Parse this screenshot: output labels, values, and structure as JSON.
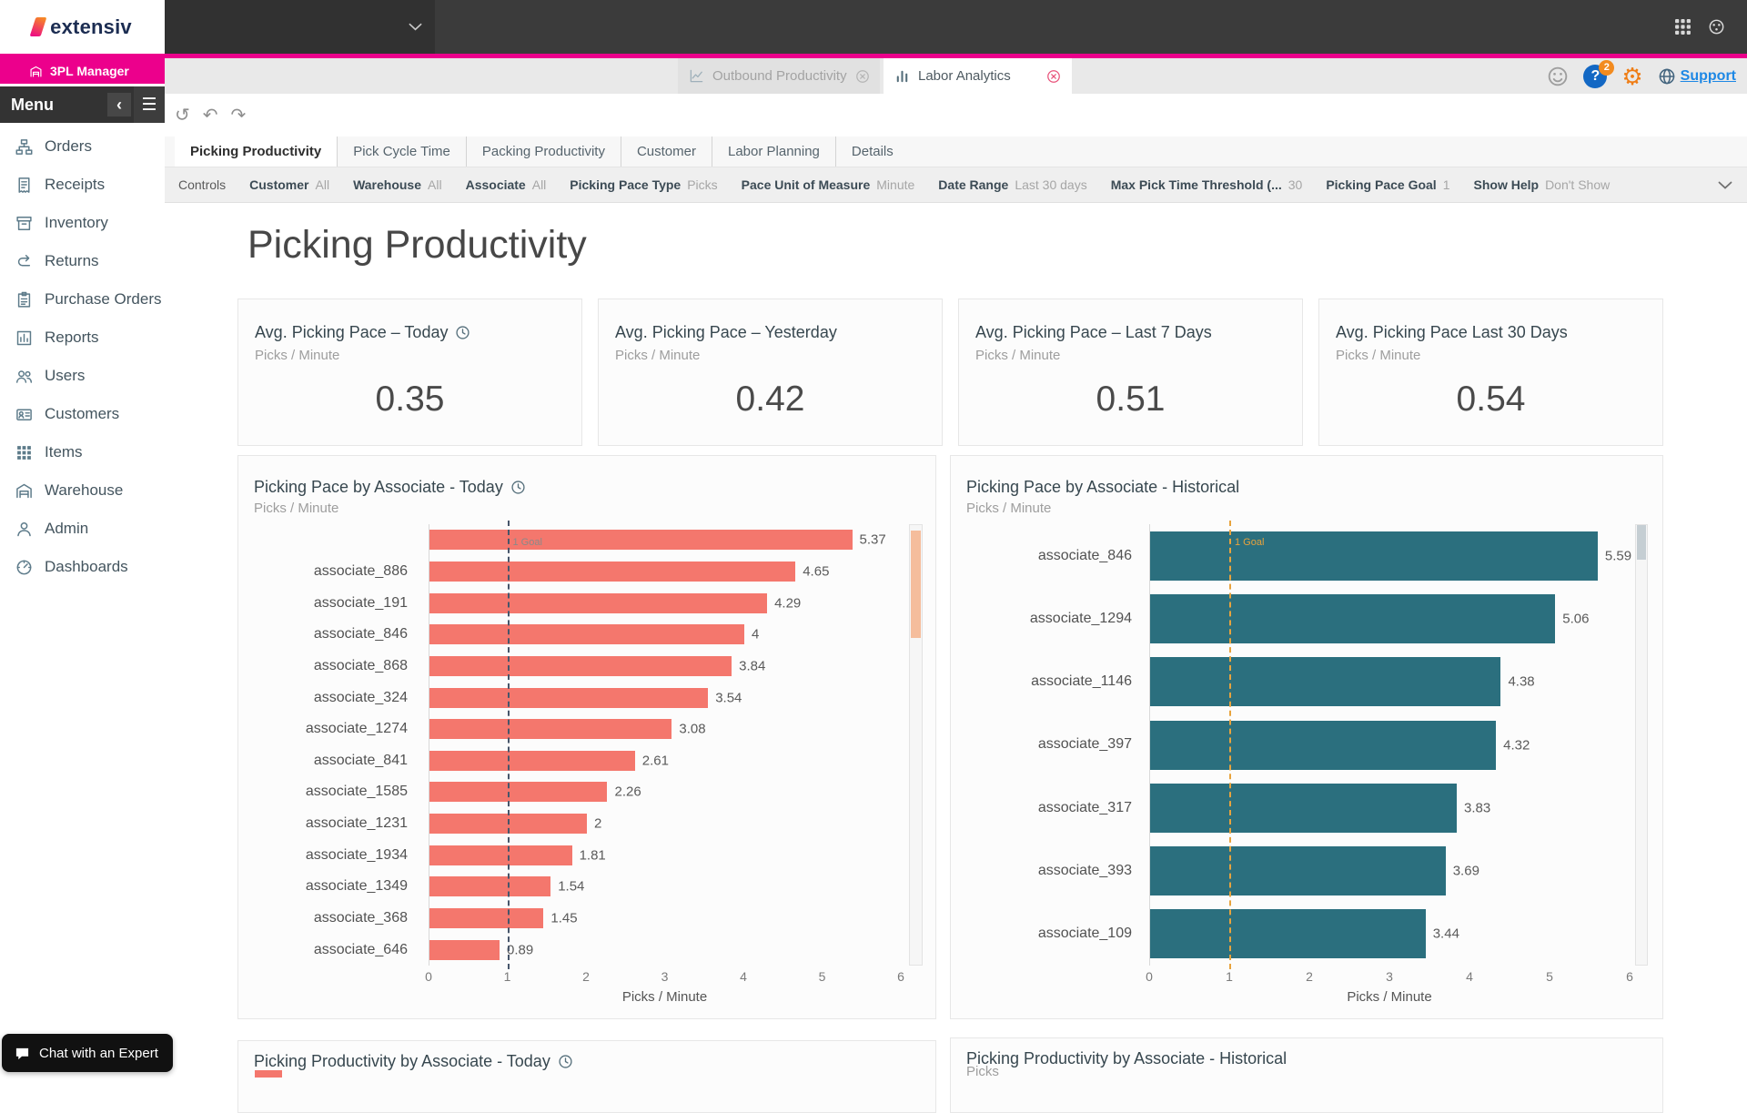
{
  "brand": {
    "logo_text": "extensiv",
    "badge": "3PL Manager"
  },
  "colors": {
    "accent_pink": "#ec008c",
    "salmon_bar": "#f4776d",
    "teal_bar": "#2b6f7e",
    "goal_orange": "#e8a33d",
    "goal_navy": "#47566b",
    "link_blue": "#1e88e5",
    "gear_orange": "#ef7d15"
  },
  "icons": {
    "reset": "↺",
    "undo": "↶",
    "redo": "↷",
    "gear": "⚙",
    "hamburger": "☰",
    "collapse": "‹",
    "help": "?"
  },
  "window_tabs": [
    {
      "label": "Outbound Productivity",
      "active": false,
      "icon": "chart-line"
    },
    {
      "label": "Labor Analytics",
      "active": true,
      "icon": "chart-bars"
    }
  ],
  "topbar_right": {
    "support_label": "Support",
    "help_badge": "2"
  },
  "menu": {
    "title": "Menu",
    "items": [
      {
        "label": "Orders",
        "icon": "orders"
      },
      {
        "label": "Receipts",
        "icon": "receipts"
      },
      {
        "label": "Inventory",
        "icon": "inventory"
      },
      {
        "label": "Returns",
        "icon": "returns"
      },
      {
        "label": "Purchase Orders",
        "icon": "purchase-orders"
      },
      {
        "label": "Reports",
        "icon": "reports"
      },
      {
        "label": "Users",
        "icon": "users"
      },
      {
        "label": "Customers",
        "icon": "customers"
      },
      {
        "label": "Items",
        "icon": "items"
      },
      {
        "label": "Warehouse",
        "icon": "warehouse"
      },
      {
        "label": "Admin",
        "icon": "admin"
      },
      {
        "label": "Dashboards",
        "icon": "dashboards"
      }
    ]
  },
  "chat_button": {
    "label": "Chat with an Expert"
  },
  "report_tabs": [
    {
      "label": "Picking Productivity",
      "active": true
    },
    {
      "label": "Pick Cycle Time",
      "active": false
    },
    {
      "label": "Packing Productivity",
      "active": false
    },
    {
      "label": "Customer",
      "active": false
    },
    {
      "label": "Labor Planning",
      "active": false
    },
    {
      "label": "Details",
      "active": false
    }
  ],
  "controls": {
    "row_label": "Controls",
    "items": [
      {
        "label": "Customer",
        "value": "All"
      },
      {
        "label": "Warehouse",
        "value": "All"
      },
      {
        "label": "Associate",
        "value": "All"
      },
      {
        "label": "Picking Pace Type",
        "value": "Picks"
      },
      {
        "label": "Pace Unit of Measure",
        "value": "Minute"
      },
      {
        "label": "Date Range",
        "value": "Last 30 days"
      },
      {
        "label": "Max Pick Time Threshold (...",
        "value": "30"
      },
      {
        "label": "Picking Pace Goal",
        "value": "1"
      },
      {
        "label": "Show Help",
        "value": "Don't Show"
      }
    ]
  },
  "page_title": "Picking Productivity",
  "kpis": [
    {
      "title": "Avg. Picking Pace – Today",
      "subtitle": "Picks / Minute",
      "value": "0.35",
      "clock": true
    },
    {
      "title": "Avg. Picking Pace – Yesterday",
      "subtitle": "Picks / Minute",
      "value": "0.42",
      "clock": false
    },
    {
      "title": "Avg. Picking Pace – Last 7 Days",
      "subtitle": "Picks / Minute",
      "value": "0.51",
      "clock": false
    },
    {
      "title": "Avg. Picking Pace Last 30 Days",
      "subtitle": "Picks / Minute",
      "value": "0.54",
      "clock": false
    }
  ],
  "chart_data": [
    {
      "type": "bar",
      "orientation": "horizontal",
      "title": "Picking Pace by Associate - Today",
      "subtitle": "Picks / Minute",
      "xlabel": "Picks / Minute",
      "xlim": [
        0,
        6
      ],
      "xticks": [
        0,
        1,
        2,
        3,
        4,
        5,
        6
      ],
      "goal": {
        "value": 1,
        "label": "1 Goal"
      },
      "bar_color": "#f4776d",
      "clock": true,
      "scrollable": true,
      "categories": [
        "",
        "associate_886",
        "associate_191",
        "associate_846",
        "associate_868",
        "associate_324",
        "associate_1274",
        "associate_841",
        "associate_1585",
        "associate_1231",
        "associate_1934",
        "associate_1349",
        "associate_368",
        "associate_646"
      ],
      "values": [
        5.37,
        4.65,
        4.29,
        4,
        3.84,
        3.54,
        3.08,
        2.61,
        2.26,
        2,
        1.81,
        1.54,
        1.45,
        0.89
      ],
      "value_labels": [
        "5.37",
        "4.65",
        "4.29",
        "4",
        "3.84",
        "3.54",
        "3.08",
        "2.61",
        "2.26",
        "2",
        "1.81",
        "1.54",
        "1.45",
        "0.89"
      ]
    },
    {
      "type": "bar",
      "orientation": "horizontal",
      "title": "Picking Pace by Associate - Historical",
      "subtitle": "Picks / Minute",
      "xlabel": "Picks / Minute",
      "xlim": [
        0,
        6
      ],
      "xticks": [
        0,
        1,
        2,
        3,
        4,
        5,
        6
      ],
      "goal": {
        "value": 1,
        "label": "1 Goal"
      },
      "bar_color": "#2b6f7e",
      "clock": false,
      "scrollable": true,
      "categories": [
        "associate_846",
        "associate_1294",
        "associate_1146",
        "associate_397",
        "associate_317",
        "associate_393",
        "associate_109"
      ],
      "values": [
        5.59,
        5.06,
        4.38,
        4.32,
        3.83,
        3.69,
        3.44
      ],
      "value_labels": [
        "5.59",
        "5.06",
        "4.38",
        "4.32",
        "3.83",
        "3.69",
        "3.44"
      ]
    }
  ],
  "bottom_charts": [
    {
      "title": "Picking Productivity by Associate - Today",
      "clock": true
    },
    {
      "title": "Picking Productivity by Associate - Historical",
      "subtitle_partial": "Picks",
      "clock": false
    }
  ]
}
